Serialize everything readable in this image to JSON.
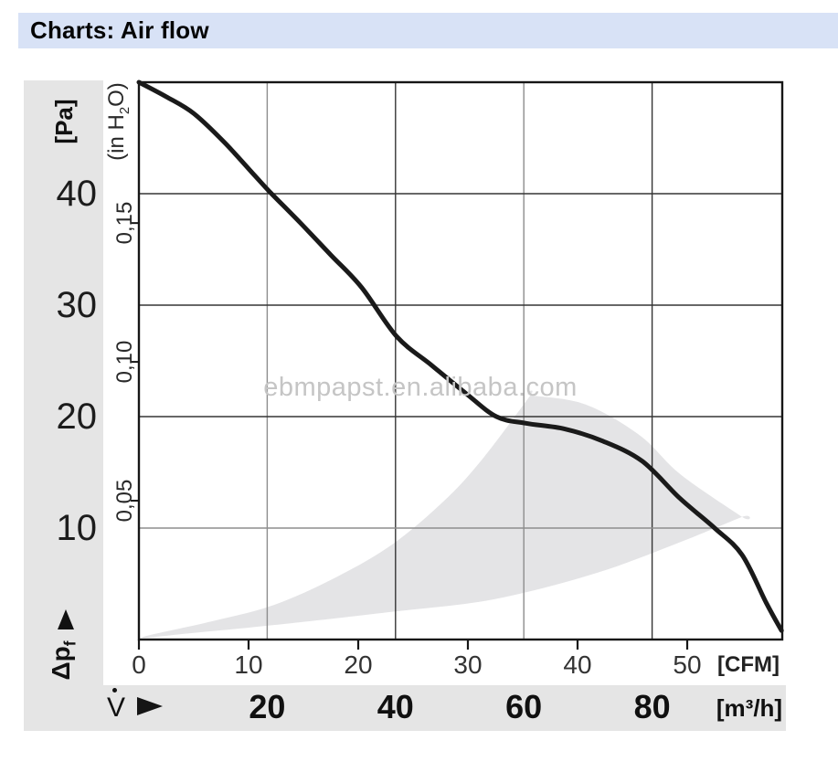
{
  "title_bar": {
    "text": "Charts: Air flow"
  },
  "watermark_text": "ebmpapst.en.alibaba.com",
  "left_axis": {
    "unit_pa": "[Pa]",
    "unit_inh2o_pre": "(in H",
    "unit_inh2o_sub": "2",
    "unit_inh2o_post": "O)",
    "quantity_pre": "Δp",
    "quantity_sub": "f"
  },
  "bottom_axis": {
    "flow_symbol": "V",
    "unit_cfm": "[CFM]",
    "unit_m3h": "[m³/h]"
  },
  "chart_data": {
    "type": "line",
    "title": "Charts: Air flow",
    "description": "Fan static pressure vs. air flow characteristic curve with recommended operating range (shaded)",
    "x_axis": {
      "primary_unit": "[CFM]",
      "range_cfm": [
        0,
        58.6
      ],
      "ticks_cfm": [
        {
          "value": 0,
          "label": "0"
        },
        {
          "value": 10,
          "label": "10"
        },
        {
          "value": 20,
          "label": "20"
        },
        {
          "value": 30,
          "label": "30"
        },
        {
          "value": 40,
          "label": "40"
        },
        {
          "value": 50,
          "label": "50"
        }
      ],
      "secondary_unit": "[m³/h]",
      "ticks_m3h": [
        {
          "value": 20,
          "label": "20"
        },
        {
          "value": 40,
          "label": "40"
        },
        {
          "value": 60,
          "label": "60"
        },
        {
          "value": 80,
          "label": "80"
        }
      ]
    },
    "y_axis": {
      "primary_unit": "[Pa]",
      "range_pa": [
        0,
        50
      ],
      "ticks_pa": [
        {
          "value": 40,
          "label": "40"
        },
        {
          "value": 30,
          "label": "30"
        },
        {
          "value": 20,
          "label": "20"
        },
        {
          "value": 10,
          "label": "10"
        }
      ],
      "secondary_unit": "(in H2O)",
      "ticks_inh2o": [
        {
          "value": 0.15,
          "label": "0,15"
        },
        {
          "value": 0.1,
          "label": "0,10"
        },
        {
          "value": 0.05,
          "label": "0,05"
        }
      ]
    },
    "gridlines": {
      "vertical_at_m3h": [
        {
          "value": 20,
          "color": "#8d8d8d"
        },
        {
          "value": 40,
          "color": "#353535"
        },
        {
          "value": 60,
          "color": "#8d8d8d"
        },
        {
          "value": 80,
          "color": "#353535"
        }
      ],
      "horizontal_at_pa": [
        {
          "value": 40,
          "color": "#353535"
        },
        {
          "value": 30,
          "color": "#353535"
        },
        {
          "value": 20,
          "color": "#353535"
        },
        {
          "value": 10,
          "color": "#8d8d8d"
        }
      ]
    },
    "series": [
      {
        "name": "fan-characteristic-curve",
        "color": "#1a1a1a",
        "points_cfm_pa": [
          [
            0,
            50
          ],
          [
            2.5,
            48.7
          ],
          [
            5,
            47.2
          ],
          [
            7.8,
            44.6
          ],
          [
            10.5,
            41.7
          ],
          [
            11.9,
            40.2
          ],
          [
            14.7,
            37.4
          ],
          [
            17.5,
            34.5
          ],
          [
            20.3,
            31.6
          ],
          [
            23.5,
            27.2
          ],
          [
            26.7,
            24.6
          ],
          [
            29.8,
            22.1
          ],
          [
            32.6,
            20.0
          ],
          [
            35.3,
            19.4
          ],
          [
            38.8,
            18.9
          ],
          [
            42.3,
            17.8
          ],
          [
            45.9,
            16.0
          ],
          [
            49.3,
            12.7
          ],
          [
            52.5,
            10.0
          ],
          [
            55.0,
            7.6
          ],
          [
            57.2,
            3.3
          ],
          [
            58.6,
            0.8
          ]
        ]
      }
    ],
    "operating_region": {
      "color": "#e4e4e6",
      "points_cfm_pa": [
        [
          0.3,
          0.2
        ],
        [
          6.5,
          1.6
        ],
        [
          12.3,
          3.1
        ],
        [
          18.0,
          5.6
        ],
        [
          23.2,
          8.6
        ],
        [
          28.0,
          12.6
        ],
        [
          31.5,
          16.4
        ],
        [
          35.7,
          21.9
        ],
        [
          35.7,
          21.9
        ],
        [
          40.7,
          21.1
        ],
        [
          45.7,
          18.3
        ],
        [
          49.4,
          14.8
        ],
        [
          55.0,
          11.0
        ],
        [
          55.0,
          11.0
        ],
        [
          49.0,
          8.6
        ],
        [
          41.5,
          5.9
        ],
        [
          32.3,
          3.6
        ],
        [
          23.2,
          2.5
        ],
        [
          12.3,
          1.3
        ],
        [
          5.0,
          0.6
        ]
      ]
    },
    "unit_conversions": {
      "cfm_per_m3h": 0.585,
      "pa_per_inh2o": 249.1
    },
    "frame_color": "#161616",
    "legend": "none",
    "grid": "on"
  }
}
